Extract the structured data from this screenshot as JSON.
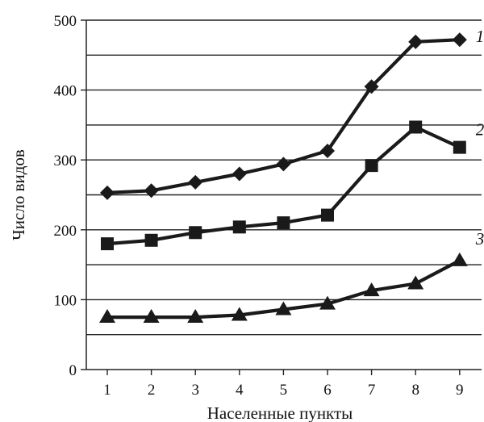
{
  "chart_data": {
    "type": "line",
    "xlabel": "Населенные пункты",
    "ylabel": "Число видов",
    "categories": [
      "1",
      "2",
      "3",
      "4",
      "5",
      "6",
      "7",
      "8",
      "9"
    ],
    "ylim": [
      0,
      500
    ],
    "yticks": [
      0,
      100,
      200,
      300,
      400,
      500
    ],
    "grid": "horizontal",
    "legend": "none",
    "series": [
      {
        "name": "1",
        "marker": "diamond",
        "color": "#1a1a1a",
        "values": [
          253,
          256,
          268,
          280,
          294,
          313,
          405,
          469,
          472
        ]
      },
      {
        "name": "2",
        "marker": "square",
        "color": "#1a1a1a",
        "values": [
          180,
          185,
          196,
          204,
          210,
          221,
          292,
          347,
          318
        ]
      },
      {
        "name": "3",
        "marker": "triangle",
        "color": "#1a1a1a",
        "values": [
          75,
          75,
          75,
          78,
          86,
          94,
          113,
          123,
          156
        ]
      }
    ]
  }
}
